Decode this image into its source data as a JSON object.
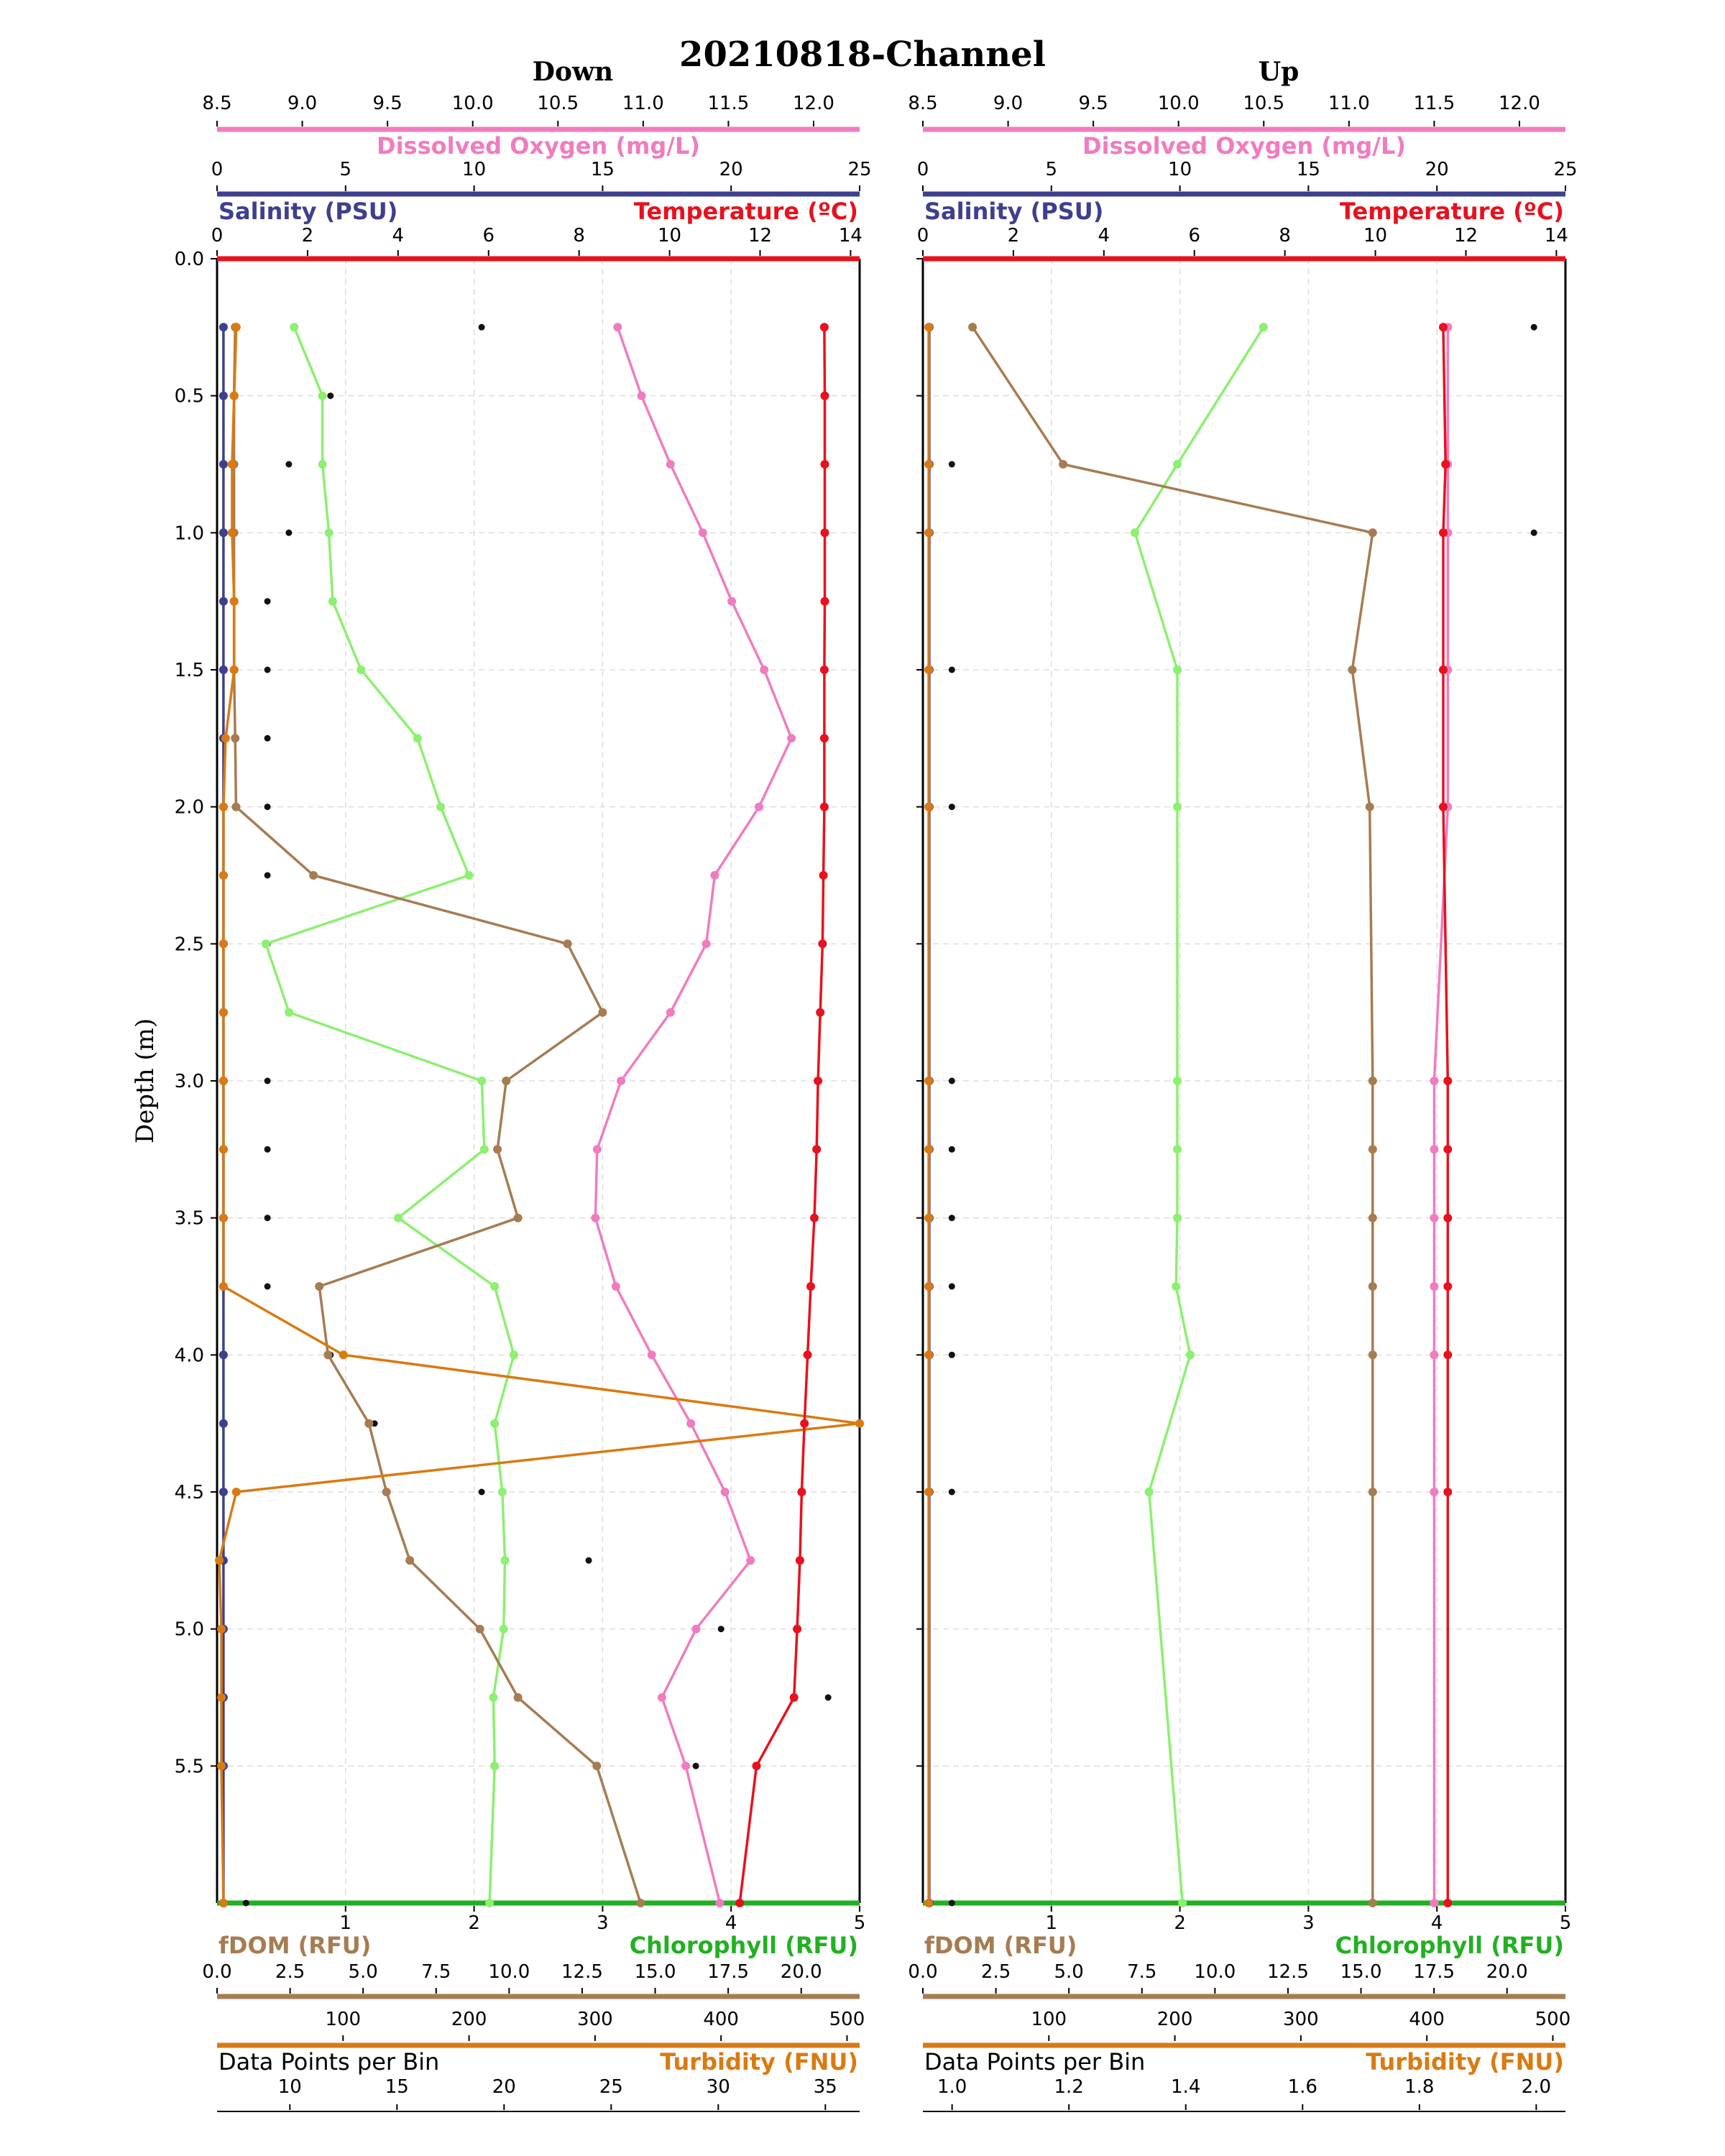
{
  "title": "20210818-Channel",
  "ylabel": "Depth (m)",
  "colors": {
    "dissolved_oxygen": "#f07cc0",
    "salinity": "#3f3f8f",
    "temperature": "#e8111e",
    "fdom": "#a67c52",
    "chlorophyll": "#8cf070",
    "chlorophyll_axis": "#22b022",
    "turbidity": "#d97a12",
    "data_points": "#111111"
  },
  "axes": {
    "dissolved_oxygen": {
      "label": "Dissolved Oxygen (mg/L)",
      "range": [
        8.5,
        12.27
      ],
      "ticks": [
        "8.5",
        "9.0",
        "9.5",
        "10.0",
        "10.5",
        "11.0",
        "11.5",
        "12.0"
      ]
    },
    "salinity": {
      "label": "Salinity (PSU)",
      "range": [
        0,
        25
      ],
      "ticks": [
        "0",
        "5",
        "10",
        "15",
        "20",
        "25"
      ]
    },
    "temperature": {
      "label": "Temperature (ºC)",
      "range": [
        0,
        14.2
      ],
      "ticks": [
        "0",
        "2",
        "4",
        "6",
        "8",
        "10",
        "12",
        "14"
      ]
    },
    "depth": {
      "range": [
        0,
        6.0
      ],
      "ticks": [
        "0.0",
        "0.5",
        "1.0",
        "1.5",
        "2.0",
        "2.5",
        "3.0",
        "3.5",
        "4.0",
        "4.5",
        "5.0",
        "5.5"
      ]
    },
    "chlorophyll": {
      "label": "Chlorophyll (RFU)",
      "range": [
        0,
        5
      ],
      "ticks": [
        "1",
        "2",
        "3",
        "4",
        "5"
      ]
    },
    "fdom": {
      "label": "fDOM (RFU)",
      "range": [
        0,
        22
      ],
      "ticks": [
        "0.0",
        "2.5",
        "5.0",
        "7.5",
        "10.0",
        "12.5",
        "15.0",
        "17.5",
        "20.0"
      ]
    },
    "data_points": {
      "label": "Data Points per Bin"
    },
    "turbidity": {
      "label": "Turbidity (FNU)"
    }
  },
  "chart_data": [
    {
      "type": "line",
      "panel": "Down",
      "title": "Down",
      "depth": [
        0.25,
        0.5,
        0.75,
        1.0,
        1.25,
        1.5,
        1.75,
        2.0,
        2.25,
        2.5,
        2.75,
        3.0,
        3.25,
        3.5,
        3.75,
        4.0,
        4.25,
        4.5,
        4.75,
        5.0,
        5.25,
        5.5,
        6.0
      ],
      "datapoints_axis": {
        "range": [
          0,
          510
        ],
        "ticks": [
          "100",
          "200",
          "300",
          "400",
          "500"
        ]
      },
      "turbidity_axis": {
        "range": [
          6.6,
          36.6
        ],
        "ticks": [
          "10",
          "15",
          "20",
          "25",
          "30",
          "35"
        ]
      },
      "series": [
        {
          "name": "Dissolved Oxygen (mg/L)",
          "key": "dissolved_oxygen",
          "axis": "dissolved_oxygen",
          "values": [
            10.85,
            10.99,
            11.16,
            11.35,
            11.52,
            11.71,
            11.87,
            11.68,
            11.42,
            11.37,
            11.16,
            10.87,
            10.73,
            10.72,
            10.84,
            11.05,
            11.28,
            11.48,
            11.63,
            11.31,
            11.11,
            11.25,
            11.45
          ]
        },
        {
          "name": "Salinity (PSU)",
          "key": "salinity",
          "axis": "salinity",
          "values": [
            0.25,
            0.25,
            0.25,
            0.25,
            0.25,
            0.25,
            0.25,
            0.25,
            0.25,
            0.25,
            0.25,
            0.25,
            0.25,
            0.25,
            0.25,
            0.25,
            0.25,
            0.25,
            0.25,
            0.25,
            0.25,
            0.25,
            0.25
          ]
        },
        {
          "name": "Temperature (ºC)",
          "key": "temperature",
          "axis": "temperature",
          "values": [
            13.42,
            13.43,
            13.43,
            13.43,
            13.43,
            13.42,
            13.42,
            13.42,
            13.4,
            13.38,
            13.33,
            13.28,
            13.25,
            13.2,
            13.12,
            13.05,
            12.98,
            12.92,
            12.88,
            12.82,
            12.75,
            11.92,
            11.55
          ]
        },
        {
          "name": "fDOM (RFU)",
          "key": "fdom",
          "axis": "fdom",
          "values": [
            0.62,
            0.58,
            0.58,
            0.58,
            0.58,
            0.58,
            0.62,
            0.65,
            3.3,
            12.0,
            13.2,
            9.9,
            9.6,
            10.3,
            3.5,
            3.8,
            5.2,
            5.8,
            6.6,
            9.0,
            10.3,
            13.0,
            14.5
          ]
        },
        {
          "name": "Chlorophyll (RFU)",
          "key": "chlorophyll",
          "axis": "chlorophyll",
          "values": [
            0.6,
            0.82,
            0.82,
            0.87,
            0.9,
            1.12,
            1.56,
            1.74,
            1.96,
            0.38,
            0.56,
            2.06,
            2.08,
            1.41,
            2.16,
            2.31,
            2.16,
            2.22,
            2.24,
            2.23,
            2.15,
            2.16,
            2.12
          ]
        },
        {
          "name": "Turbidity (FNU)",
          "key": "turbidity",
          "axis": "turbidity",
          "values": [
            7.5,
            7.4,
            7.3,
            7.3,
            7.4,
            7.4,
            7.0,
            6.9,
            6.9,
            6.9,
            6.9,
            6.9,
            6.9,
            6.9,
            6.9,
            12.5,
            36.6,
            7.5,
            6.7,
            6.8,
            6.8,
            6.8,
            6.9
          ]
        },
        {
          "name": "Data Points per Bin",
          "key": "data_points",
          "axis": "datapoints",
          "style": "points",
          "values": [
            210,
            90,
            57,
            57,
            40,
            40,
            40,
            40,
            40,
            40,
            57,
            40,
            40,
            40,
            40,
            90,
            125,
            210,
            295,
            400,
            485,
            380,
            23
          ]
        }
      ]
    },
    {
      "type": "line",
      "panel": "Up",
      "title": "Up",
      "depth": [
        0.25,
        0.75,
        1.0,
        1.5,
        2.0,
        3.0,
        3.25,
        3.5,
        3.75,
        4.0,
        4.5,
        6.0
      ],
      "datapoints_axis": {
        "range": [
          0,
          510
        ],
        "ticks": [
          "100",
          "200",
          "300",
          "400",
          "500"
        ]
      },
      "turbidity_axis": {
        "range": [
          0.95,
          2.05
        ],
        "ticks": [
          "1.0",
          "1.2",
          "1.4",
          "1.6",
          "1.8",
          "2.0"
        ]
      },
      "series": [
        {
          "name": "Dissolved Oxygen (mg/L)",
          "key": "dissolved_oxygen",
          "axis": "dissolved_oxygen",
          "values": [
            11.58,
            11.58,
            11.58,
            11.58,
            11.58,
            11.5,
            11.5,
            11.5,
            11.5,
            11.5,
            11.5,
            11.5
          ]
        },
        {
          "name": "Salinity (PSU)",
          "key": "salinity",
          "axis": "salinity",
          "values": [
            0.25,
            0.25,
            0.25,
            0.25,
            0.25,
            0.25,
            0.25,
            0.25,
            0.25,
            0.25,
            0.25,
            0.25
          ]
        },
        {
          "name": "Temperature (ºC)",
          "key": "temperature",
          "axis": "temperature",
          "values": [
            11.5,
            11.55,
            11.5,
            11.5,
            11.5,
            11.6,
            11.6,
            11.6,
            11.6,
            11.6,
            11.6,
            11.6
          ]
        },
        {
          "name": "fDOM (RFU)",
          "key": "fdom",
          "axis": "fdom",
          "values": [
            1.7,
            4.8,
            15.4,
            14.7,
            15.3,
            15.4,
            15.4,
            15.4,
            15.4,
            15.4,
            15.4,
            15.4
          ]
        },
        {
          "name": "Chlorophyll (RFU)",
          "key": "chlorophyll",
          "axis": "chlorophyll",
          "values": [
            2.65,
            1.98,
            1.65,
            1.98,
            1.98,
            1.98,
            1.98,
            1.98,
            1.97,
            2.08,
            1.76,
            2.02
          ]
        },
        {
          "name": "Turbidity (FNU)",
          "key": "turbidity",
          "axis": "turbidity",
          "values": [
            0.96,
            0.96,
            0.96,
            0.96,
            0.96,
            0.96,
            0.96,
            0.96,
            0.96,
            0.96,
            0.96,
            0.96
          ]
        },
        {
          "name": "Data Points per Bin",
          "key": "data_points",
          "axis": "datapoints",
          "style": "points",
          "values": [
            485,
            23,
            485,
            23,
            23,
            23,
            23,
            23,
            23,
            23,
            23,
            23
          ]
        }
      ]
    }
  ]
}
